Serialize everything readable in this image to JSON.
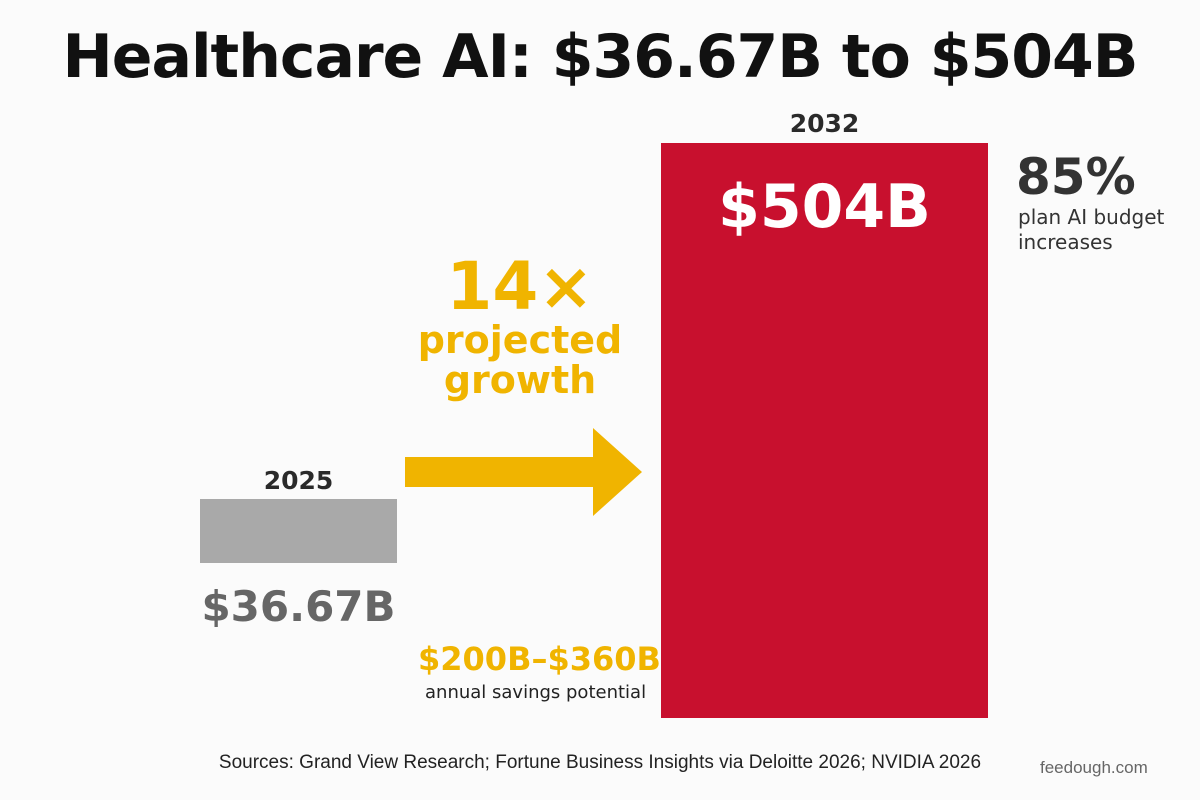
{
  "colors": {
    "bar_2025": "#a9a9a9",
    "bar_2032": "#c8102e",
    "accent": "#f0b400"
  },
  "chart_data": {
    "type": "bar",
    "title": "Healthcare AI: $36.67B to $504B",
    "categories": [
      "2025",
      "2032"
    ],
    "values": [
      36.67,
      504
    ],
    "value_labels": [
      "$36.67B",
      "$504B"
    ],
    "units": "B USD",
    "ylim": [
      0,
      504
    ],
    "grid": false,
    "annotations": {
      "growth_multiplier": "14×",
      "growth_caption": "projected growth",
      "stat_value": "85%",
      "stat_caption": "plan AI budget increases",
      "savings_range": "$200B–$360B",
      "savings_caption": "annual savings potential"
    }
  },
  "footer": {
    "sources": "Sources: Grand View Research; Fortune Business Insights via Deloitte 2026; NVIDIA 2026",
    "watermark": "feedough.com"
  }
}
